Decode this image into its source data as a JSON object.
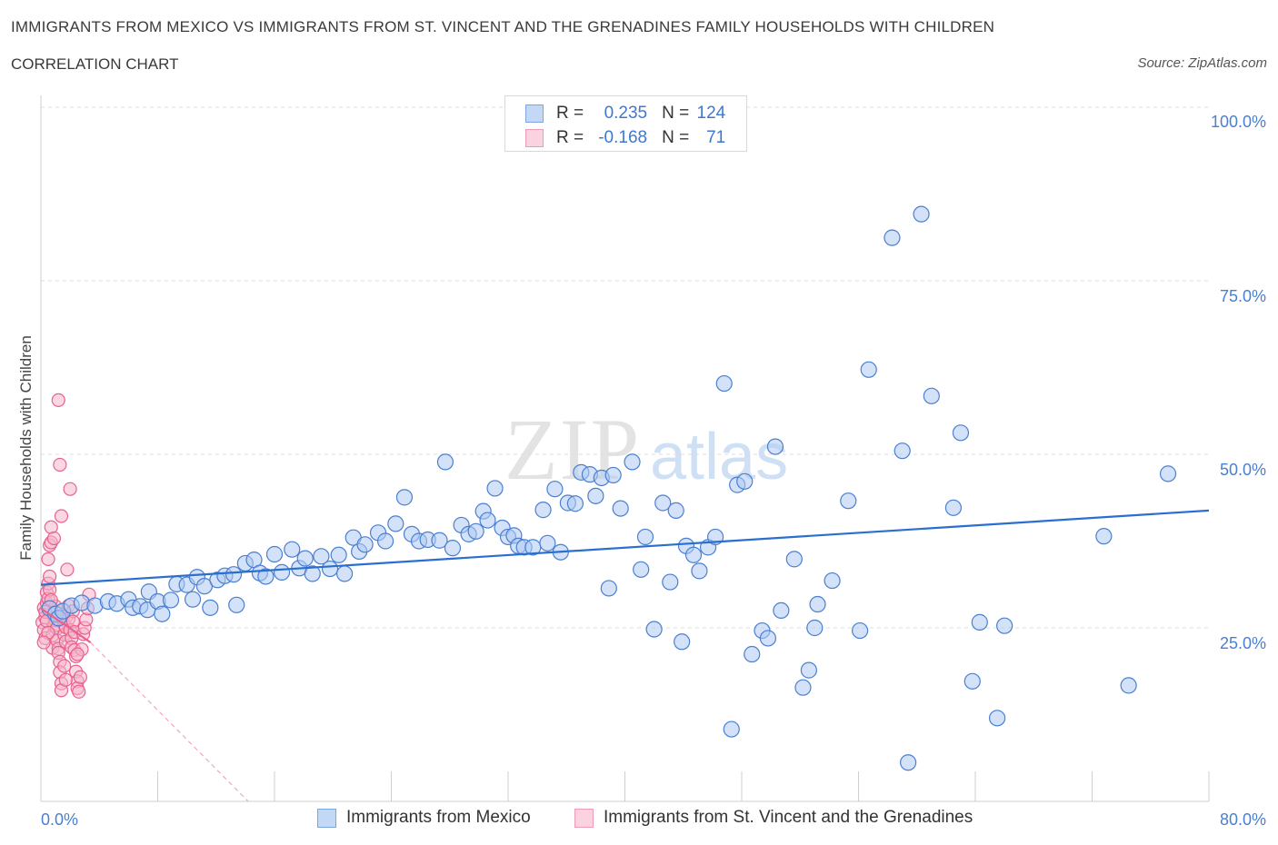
{
  "title": "IMMIGRANTS FROM MEXICO VS IMMIGRANTS FROM ST. VINCENT AND THE GRENADINES FAMILY HOUSEHOLDS WITH CHILDREN",
  "subtitle": "CORRELATION CHART",
  "source": "Source: ZipAtlas.com",
  "watermark": {
    "zip": "ZIP",
    "atlas": "atlas"
  },
  "legend": {
    "series1": {
      "r_label": "R =",
      "r_value": "0.235",
      "n_label": "N =",
      "n_value": "124"
    },
    "series2": {
      "r_label": "R =",
      "r_value": "-0.168",
      "n_label": "N =",
      "n_value": "71"
    }
  },
  "colors": {
    "blue": "#4a7fd1",
    "blue_fill": "#aecbf2",
    "pink": "#e8628f",
    "pink_fill": "#f6b6cb"
  },
  "chart_data": {
    "type": "scatter",
    "xlabel": "",
    "ylabel": "Family Households with Children",
    "xlim": [
      0,
      80
    ],
    "ylim": [
      0,
      100
    ],
    "x_tick_labels": [
      "0.0%",
      "80.0%"
    ],
    "y_ticks": [
      25,
      50,
      75,
      100
    ],
    "y_tick_labels": [
      "25.0%",
      "50.0%",
      "75.0%",
      "100.0%"
    ],
    "grid": true,
    "series": [
      {
        "name": "Immigrants from Mexico",
        "color": "blue",
        "trend": {
          "x": [
            0,
            80
          ],
          "y": [
            31.2,
            41.9
          ]
        },
        "points": [
          [
            0.6,
            27.8
          ],
          [
            1.0,
            27.0
          ],
          [
            1.2,
            26.4
          ],
          [
            1.5,
            27.4
          ],
          [
            2.1,
            28.2
          ],
          [
            2.8,
            28.6
          ],
          [
            3.7,
            28.2
          ],
          [
            4.6,
            28.8
          ],
          [
            5.2,
            28.5
          ],
          [
            6.0,
            29.1
          ],
          [
            6.3,
            27.9
          ],
          [
            6.8,
            28.1
          ],
          [
            7.3,
            27.6
          ],
          [
            7.4,
            30.2
          ],
          [
            8.0,
            28.8
          ],
          [
            8.3,
            27.0
          ],
          [
            8.9,
            29.0
          ],
          [
            9.3,
            31.3
          ],
          [
            10.0,
            31.2
          ],
          [
            10.4,
            29.1
          ],
          [
            10.7,
            32.3
          ],
          [
            11.2,
            31.0
          ],
          [
            11.6,
            27.9
          ],
          [
            12.1,
            31.9
          ],
          [
            12.6,
            32.5
          ],
          [
            13.2,
            32.7
          ],
          [
            13.4,
            28.3
          ],
          [
            14.0,
            34.3
          ],
          [
            14.6,
            34.8
          ],
          [
            15.0,
            32.9
          ],
          [
            15.4,
            32.4
          ],
          [
            16.0,
            35.6
          ],
          [
            16.5,
            33.0
          ],
          [
            17.2,
            36.3
          ],
          [
            17.7,
            33.6
          ],
          [
            18.1,
            35.0
          ],
          [
            18.6,
            32.8
          ],
          [
            19.2,
            35.3
          ],
          [
            19.8,
            33.5
          ],
          [
            20.4,
            35.5
          ],
          [
            20.8,
            32.8
          ],
          [
            21.4,
            38.0
          ],
          [
            21.8,
            36.0
          ],
          [
            22.2,
            37.0
          ],
          [
            23.1,
            38.7
          ],
          [
            23.6,
            37.5
          ],
          [
            24.3,
            40.0
          ],
          [
            24.9,
            43.8
          ],
          [
            25.4,
            38.5
          ],
          [
            25.9,
            37.5
          ],
          [
            26.5,
            37.7
          ],
          [
            27.3,
            37.6
          ],
          [
            27.7,
            48.9
          ],
          [
            28.2,
            36.5
          ],
          [
            28.8,
            39.8
          ],
          [
            29.3,
            38.5
          ],
          [
            29.8,
            38.9
          ],
          [
            30.3,
            41.8
          ],
          [
            30.6,
            40.5
          ],
          [
            31.1,
            45.1
          ],
          [
            31.6,
            39.4
          ],
          [
            32.0,
            38.1
          ],
          [
            32.4,
            38.3
          ],
          [
            32.7,
            36.8
          ],
          [
            33.1,
            36.6
          ],
          [
            33.7,
            36.6
          ],
          [
            34.4,
            42.0
          ],
          [
            34.7,
            37.2
          ],
          [
            35.2,
            45.0
          ],
          [
            35.6,
            35.9
          ],
          [
            36.1,
            43.0
          ],
          [
            36.6,
            42.9
          ],
          [
            37.0,
            47.4
          ],
          [
            37.6,
            47.1
          ],
          [
            38.0,
            44.0
          ],
          [
            38.4,
            46.6
          ],
          [
            38.9,
            30.7
          ],
          [
            39.2,
            47.0
          ],
          [
            39.7,
            42.2
          ],
          [
            40.5,
            48.9
          ],
          [
            41.1,
            33.4
          ],
          [
            41.4,
            38.1
          ],
          [
            42.0,
            24.8
          ],
          [
            42.6,
            43.0
          ],
          [
            43.1,
            31.6
          ],
          [
            43.5,
            41.9
          ],
          [
            43.9,
            23.0
          ],
          [
            44.2,
            36.8
          ],
          [
            44.7,
            35.5
          ],
          [
            45.1,
            33.2
          ],
          [
            45.7,
            36.6
          ],
          [
            46.2,
            38.1
          ],
          [
            46.8,
            60.2
          ],
          [
            47.3,
            10.4
          ],
          [
            47.7,
            45.6
          ],
          [
            48.2,
            46.1
          ],
          [
            48.7,
            21.2
          ],
          [
            49.4,
            24.6
          ],
          [
            49.8,
            23.5
          ],
          [
            50.3,
            51.1
          ],
          [
            50.7,
            27.5
          ],
          [
            51.6,
            34.9
          ],
          [
            52.2,
            16.4
          ],
          [
            52.6,
            18.9
          ],
          [
            53.0,
            25.0
          ],
          [
            53.2,
            28.4
          ],
          [
            54.2,
            31.8
          ],
          [
            55.3,
            43.3
          ],
          [
            56.1,
            24.6
          ],
          [
            56.7,
            62.2
          ],
          [
            58.3,
            81.2
          ],
          [
            59.4,
            5.6
          ],
          [
            60.3,
            84.6
          ],
          [
            61.0,
            58.4
          ],
          [
            62.5,
            42.3
          ],
          [
            63.0,
            53.1
          ],
          [
            63.8,
            17.3
          ],
          [
            64.3,
            25.8
          ],
          [
            66.0,
            25.3
          ],
          [
            72.8,
            38.2
          ],
          [
            74.5,
            16.7
          ],
          [
            77.2,
            47.2
          ],
          [
            65.5,
            12.0
          ],
          [
            59.0,
            50.5
          ]
        ]
      },
      {
        "name": "Immigrants from St. Vincent and the Grenadines",
        "color": "pink",
        "trend_solid": {
          "x": [
            0,
            3.4
          ],
          "y": [
            27.8,
            22.9
          ]
        },
        "trend_dashed": {
          "x": [
            3.4,
            14.2
          ],
          "y": [
            22.9,
            0
          ]
        },
        "points": [
          [
            0.1,
            25.8
          ],
          [
            0.2,
            24.7
          ],
          [
            0.2,
            27.9
          ],
          [
            0.3,
            26.5
          ],
          [
            0.3,
            23.5
          ],
          [
            0.4,
            28.6
          ],
          [
            0.4,
            30.1
          ],
          [
            0.5,
            29.2
          ],
          [
            0.5,
            31.4
          ],
          [
            0.6,
            32.4
          ],
          [
            0.6,
            36.9
          ],
          [
            0.7,
            37.3
          ],
          [
            0.7,
            39.5
          ],
          [
            0.8,
            22.1
          ],
          [
            0.8,
            23.9
          ],
          [
            0.9,
            25.3
          ],
          [
            0.9,
            27.0
          ],
          [
            1.0,
            28.1
          ],
          [
            1.0,
            26.1
          ],
          [
            1.1,
            24.9
          ],
          [
            1.1,
            23.2
          ],
          [
            1.2,
            22.0
          ],
          [
            1.2,
            21.4
          ],
          [
            1.3,
            20.1
          ],
          [
            1.3,
            18.6
          ],
          [
            1.4,
            17.0
          ],
          [
            1.4,
            16.0
          ],
          [
            1.5,
            26.3
          ],
          [
            1.5,
            27.6
          ],
          [
            1.6,
            25.5
          ],
          [
            1.6,
            24.0
          ],
          [
            1.7,
            23.0
          ],
          [
            1.7,
            25.1
          ],
          [
            1.8,
            26.8
          ],
          [
            1.8,
            33.4
          ],
          [
            1.9,
            26.3
          ],
          [
            1.9,
            28.2
          ],
          [
            2.0,
            45.0
          ],
          [
            2.0,
            24.7
          ],
          [
            2.1,
            23.5
          ],
          [
            2.1,
            22.2
          ],
          [
            2.2,
            27.4
          ],
          [
            2.2,
            25.9
          ],
          [
            2.3,
            24.4
          ],
          [
            2.3,
            21.8
          ],
          [
            2.4,
            20.9
          ],
          [
            2.4,
            18.7
          ],
          [
            2.5,
            17.3
          ],
          [
            2.5,
            16.3
          ],
          [
            2.6,
            15.8
          ],
          [
            2.7,
            17.9
          ],
          [
            2.8,
            21.9
          ],
          [
            2.9,
            24.1
          ],
          [
            3.0,
            25.0
          ],
          [
            3.1,
            26.2
          ],
          [
            3.2,
            27.8
          ],
          [
            3.3,
            29.8
          ],
          [
            1.2,
            57.8
          ],
          [
            1.3,
            48.5
          ],
          [
            1.4,
            41.1
          ],
          [
            0.9,
            37.9
          ],
          [
            0.5,
            34.9
          ],
          [
            0.6,
            30.5
          ],
          [
            0.7,
            29.0
          ],
          [
            0.3,
            27.3
          ],
          [
            0.4,
            26.0
          ],
          [
            0.5,
            24.3
          ],
          [
            0.2,
            22.9
          ],
          [
            1.6,
            19.5
          ],
          [
            1.7,
            17.5
          ],
          [
            2.5,
            21.2
          ]
        ]
      }
    ]
  }
}
